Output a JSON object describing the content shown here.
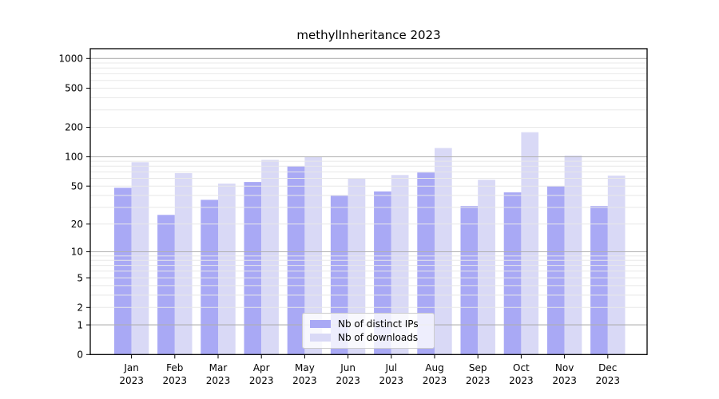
{
  "title": "methylInheritance 2023",
  "colors": {
    "bar_distinct_ips": "#a9a9f5",
    "bar_downloads": "#d9d9f6",
    "grid_major": "#b0b0b0",
    "grid_minor": "#e8e8e8",
    "axis": "#000000",
    "legend_border": "#cccccc"
  },
  "chart_data": {
    "type": "bar",
    "title": "methylInheritance 2023",
    "xlabel": "",
    "ylabel": "",
    "months": [
      "Jan",
      "Feb",
      "Mar",
      "Apr",
      "May",
      "Jun",
      "Jul",
      "Aug",
      "Sep",
      "Oct",
      "Nov",
      "Dec"
    ],
    "year": "2023",
    "categories": [
      "Jan 2023",
      "Feb 2023",
      "Mar 2023",
      "Apr 2023",
      "May 2023",
      "Jun 2023",
      "Jul 2023",
      "Aug 2023",
      "Sep 2023",
      "Oct 2023",
      "Nov 2023",
      "Dec 2023"
    ],
    "series": [
      {
        "key": "distinct-ips",
        "name": "Nb of distinct IPs",
        "color": "#a9a9f5",
        "values": [
          48,
          25,
          36,
          55,
          80,
          40,
          44,
          69,
          31,
          43,
          50,
          31
        ]
      },
      {
        "key": "downloads",
        "name": "Nb of downloads",
        "color": "#d9d9f6",
        "values": [
          88,
          68,
          53,
          93,
          100,
          60,
          65,
          123,
          58,
          178,
          103,
          64
        ]
      }
    ],
    "y_axis": {
      "scale": "log1p",
      "ticks": [
        0,
        1,
        2,
        5,
        10,
        20,
        50,
        100,
        200,
        500,
        1000
      ],
      "major_gridlines": [
        1,
        10,
        100,
        1000
      ],
      "ylim": [
        0,
        1250
      ]
    },
    "grid": "horizontal major+minor, drawn over bars",
    "legend_position": "lower center"
  }
}
